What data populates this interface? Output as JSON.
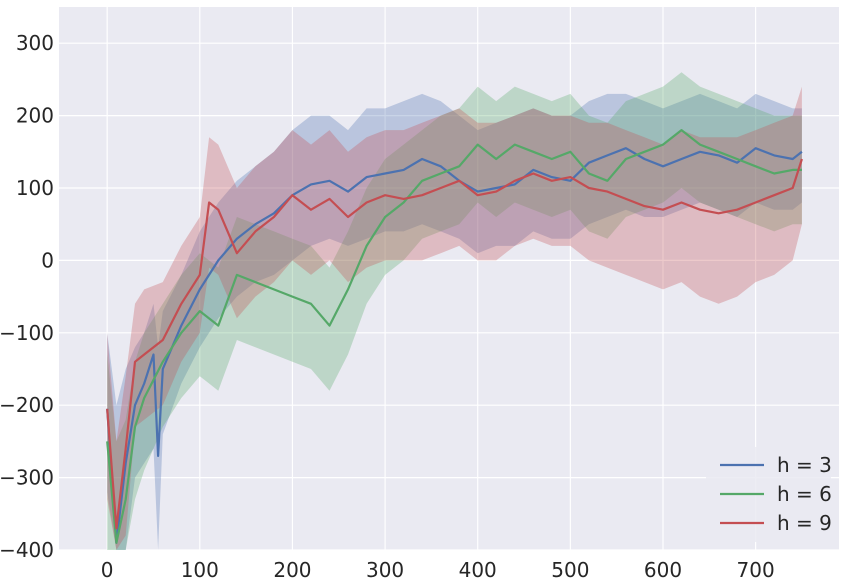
{
  "chart_data": {
    "type": "line",
    "title": "",
    "xlabel": "",
    "ylabel": "",
    "xlim": [
      -52,
      790
    ],
    "ylim": [
      -400,
      350
    ],
    "x_ticks": [
      0,
      100,
      200,
      300,
      400,
      500,
      600,
      700
    ],
    "x_tick_labels": [
      "0",
      "100",
      "200",
      "300",
      "400",
      "500",
      "600",
      "700"
    ],
    "y_ticks": [
      -400,
      -300,
      -200,
      -100,
      0,
      100,
      200,
      300
    ],
    "y_tick_labels": [
      "−400",
      "−300",
      "−200",
      "−100",
      "0",
      "100",
      "200",
      "300"
    ],
    "grid": true,
    "legend_position": "lower-right",
    "shaded_band": "mean ± spread per series",
    "background_color": "#eaeaf2",
    "series": [
      {
        "name": "h = 3",
        "color": "#4c72b0",
        "x": [
          0,
          10,
          20,
          30,
          40,
          50,
          55,
          60,
          80,
          100,
          120,
          140,
          160,
          180,
          200,
          220,
          240,
          260,
          280,
          300,
          320,
          340,
          360,
          380,
          400,
          420,
          440,
          460,
          480,
          500,
          520,
          540,
          560,
          580,
          600,
          620,
          640,
          660,
          680,
          700,
          720,
          740,
          750
        ],
        "y": [
          -205,
          -390,
          -280,
          -200,
          -170,
          -130,
          -270,
          -150,
          -90,
          -40,
          0,
          30,
          50,
          65,
          90,
          105,
          110,
          95,
          115,
          120,
          125,
          140,
          130,
          110,
          95,
          100,
          105,
          125,
          115,
          110,
          135,
          145,
          155,
          140,
          130,
          140,
          150,
          145,
          135,
          155,
          145,
          140,
          150
        ],
        "upper": [
          -100,
          -200,
          -150,
          -120,
          -100,
          -60,
          -120,
          -70,
          -20,
          40,
          80,
          110,
          130,
          150,
          180,
          200,
          200,
          180,
          210,
          210,
          220,
          230,
          220,
          200,
          180,
          190,
          200,
          210,
          200,
          200,
          220,
          230,
          230,
          220,
          210,
          220,
          230,
          220,
          210,
          230,
          220,
          210,
          210
        ],
        "lower": [
          -320,
          -400,
          -400,
          -300,
          -280,
          -260,
          -400,
          -240,
          -170,
          -120,
          -80,
          -50,
          -30,
          -20,
          0,
          20,
          30,
          20,
          30,
          40,
          40,
          50,
          40,
          30,
          10,
          20,
          20,
          40,
          30,
          30,
          50,
          60,
          70,
          60,
          60,
          70,
          80,
          70,
          60,
          80,
          70,
          70,
          80
        ]
      },
      {
        "name": "h = 6",
        "color": "#55a868",
        "x": [
          0,
          10,
          20,
          30,
          40,
          60,
          80,
          100,
          120,
          140,
          160,
          180,
          200,
          220,
          240,
          260,
          280,
          300,
          320,
          340,
          360,
          380,
          400,
          420,
          440,
          460,
          480,
          500,
          520,
          540,
          560,
          580,
          600,
          620,
          640,
          660,
          680,
          700,
          720,
          740,
          750
        ],
        "y": [
          -250,
          -390,
          -330,
          -230,
          -190,
          -140,
          -100,
          -70,
          -90,
          -20,
          -30,
          -40,
          -50,
          -60,
          -90,
          -40,
          20,
          60,
          80,
          110,
          120,
          130,
          160,
          140,
          160,
          150,
          140,
          150,
          120,
          110,
          140,
          150,
          160,
          180,
          160,
          150,
          140,
          130,
          120,
          125,
          125
        ],
        "upper": [
          -130,
          -250,
          -220,
          -140,
          -100,
          -60,
          -20,
          10,
          -10,
          60,
          50,
          40,
          30,
          20,
          -10,
          40,
          100,
          140,
          160,
          180,
          200,
          210,
          240,
          220,
          240,
          230,
          220,
          230,
          200,
          190,
          220,
          230,
          240,
          260,
          240,
          230,
          220,
          210,
          200,
          200,
          200
        ],
        "lower": [
          -400,
          -400,
          -400,
          -330,
          -290,
          -230,
          -190,
          -160,
          -180,
          -110,
          -120,
          -130,
          -140,
          -150,
          -180,
          -130,
          -60,
          -20,
          0,
          30,
          40,
          50,
          80,
          60,
          80,
          70,
          60,
          70,
          40,
          30,
          60,
          70,
          80,
          100,
          80,
          70,
          60,
          50,
          40,
          50,
          50
        ]
      },
      {
        "name": "h = 9",
        "color": "#c44e52",
        "x": [
          0,
          10,
          20,
          30,
          40,
          60,
          80,
          100,
          110,
          120,
          140,
          160,
          180,
          200,
          220,
          240,
          260,
          280,
          300,
          320,
          340,
          360,
          380,
          400,
          420,
          440,
          460,
          480,
          500,
          520,
          540,
          560,
          580,
          600,
          620,
          640,
          660,
          680,
          700,
          720,
          740,
          750
        ],
        "y": [
          -205,
          -370,
          -260,
          -140,
          -130,
          -110,
          -60,
          -20,
          80,
          70,
          10,
          40,
          60,
          90,
          70,
          85,
          60,
          80,
          90,
          85,
          90,
          100,
          110,
          90,
          95,
          110,
          120,
          110,
          115,
          100,
          95,
          85,
          75,
          70,
          80,
          70,
          65,
          70,
          80,
          90,
          100,
          140
        ],
        "upper": [
          -100,
          -250,
          -160,
          -60,
          -40,
          -30,
          20,
          60,
          170,
          160,
          100,
          130,
          150,
          180,
          160,
          180,
          150,
          170,
          180,
          180,
          190,
          200,
          210,
          190,
          190,
          200,
          210,
          200,
          200,
          190,
          190,
          180,
          170,
          160,
          180,
          170,
          170,
          170,
          180,
          190,
          200,
          240
        ],
        "lower": [
          -330,
          -400,
          -380,
          -230,
          -220,
          -200,
          -140,
          -100,
          -10,
          -20,
          -80,
          -50,
          -30,
          0,
          -20,
          0,
          -30,
          -10,
          0,
          0,
          0,
          10,
          20,
          0,
          0,
          20,
          30,
          20,
          20,
          0,
          -10,
          -20,
          -30,
          -40,
          -30,
          -50,
          -60,
          -50,
          -30,
          -20,
          0,
          50
        ]
      }
    ]
  }
}
